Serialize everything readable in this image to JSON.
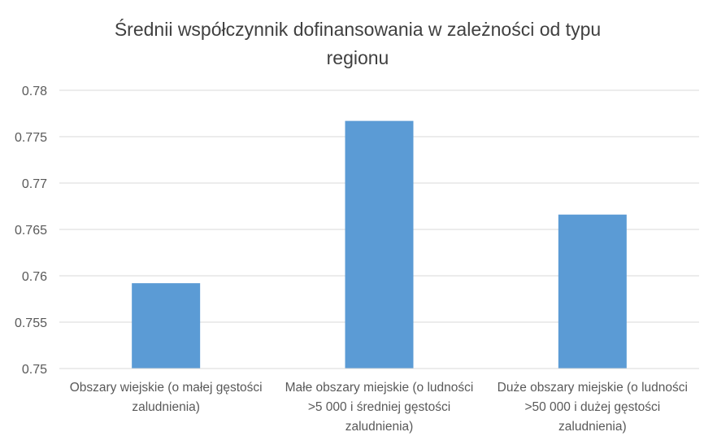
{
  "chart_data": {
    "type": "bar",
    "title": "Średnii współczynnik dofinansowania w zależności od typu regionu",
    "title_lines": [
      "Średnii współczynnik dofinansowania w zależności od typu",
      "regionu"
    ],
    "xlabel": "",
    "ylabel": "",
    "categories": [
      "Obszary wiejskie (o małej gęstości zaludnienia)",
      "Małe obszary miejskie (o ludności >5 000 i średniej gęstości zaludnienia)",
      "Duże obszary miejskie (o ludności >50 000 i dużej gęstości zaludnienia)"
    ],
    "category_lines": [
      [
        "Obszary wiejskie (o małej gęstości",
        "zaludnienia)"
      ],
      [
        "Małe obszary miejskie (o ludności",
        ">5 000 i średniej gęstości",
        "zaludnienia)"
      ],
      [
        "Duże obszary miejskie (o ludności",
        ">50 000 i dużej gęstości",
        "zaludnienia)"
      ]
    ],
    "values": [
      0.7592,
      0.7767,
      0.7666
    ],
    "ylim": [
      0.75,
      0.78
    ],
    "yticks": [
      "0.75",
      "0.755",
      "0.76",
      "0.765",
      "0.77",
      "0.775",
      "0.78"
    ],
    "grid": true,
    "legend": "none",
    "colors": {
      "bar": "#5B9BD5",
      "grid": "#D9D9D9",
      "text": "#595959",
      "title": "#404040"
    }
  }
}
